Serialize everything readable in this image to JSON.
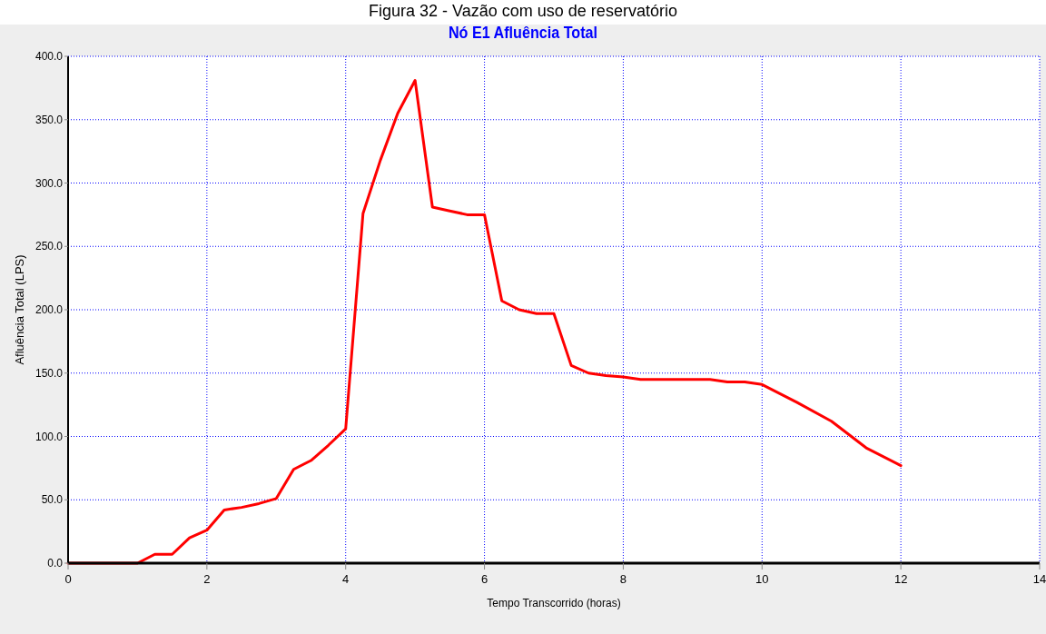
{
  "chart_data": {
    "type": "line",
    "title": "Nó E1 Afluência Total",
    "xlabel": "Tempo Transcorrido (horas)",
    "ylabel": "Afluência Total (LPS)",
    "annotations": [
      "Figura 32 - Vazão com uso de reservatório"
    ],
    "x": [
      0,
      1,
      1.25,
      1.5,
      1.75,
      2,
      2.25,
      2.5,
      2.75,
      3,
      3.25,
      3.5,
      3.75,
      4,
      4.25,
      4.5,
      4.75,
      5,
      5.25,
      5.5,
      5.75,
      6,
      6.25,
      6.5,
      6.75,
      7,
      7.25,
      7.5,
      7.75,
      8,
      8.25,
      8.5,
      8.75,
      9,
      9.25,
      9.5,
      9.75,
      10,
      10.5,
      11,
      11.5,
      12
    ],
    "series": [
      {
        "color": "#ff0000",
        "values": [
          0,
          0,
          7,
          7,
          20,
          26,
          42,
          44,
          47,
          51,
          74,
          81,
          93,
          106,
          276,
          318,
          355,
          381,
          281,
          278,
          275,
          275,
          207,
          200,
          197,
          197,
          156,
          150,
          148,
          147,
          145,
          145,
          145,
          145,
          145,
          143,
          143,
          141,
          127,
          112,
          91,
          77
        ]
      }
    ],
    "xlim": [
      0,
      14
    ],
    "xticks": [
      0,
      2,
      4,
      6,
      8,
      10,
      12,
      14
    ],
    "ylim": [
      0,
      400
    ],
    "yticks": [
      {
        "value": 0,
        "label": "0.0"
      },
      {
        "value": 50,
        "label": "50.0"
      },
      {
        "value": 100,
        "label": "100.0"
      },
      {
        "value": 150,
        "label": "150.0"
      },
      {
        "value": 200,
        "label": "200.0"
      },
      {
        "value": 250,
        "label": "250.0"
      },
      {
        "value": 300,
        "label": "300.0"
      },
      {
        "value": 350,
        "label": "350.0"
      },
      {
        "value": 400,
        "label": "400.0"
      }
    ],
    "grid": true,
    "line_style": "solid",
    "marker": "none"
  }
}
